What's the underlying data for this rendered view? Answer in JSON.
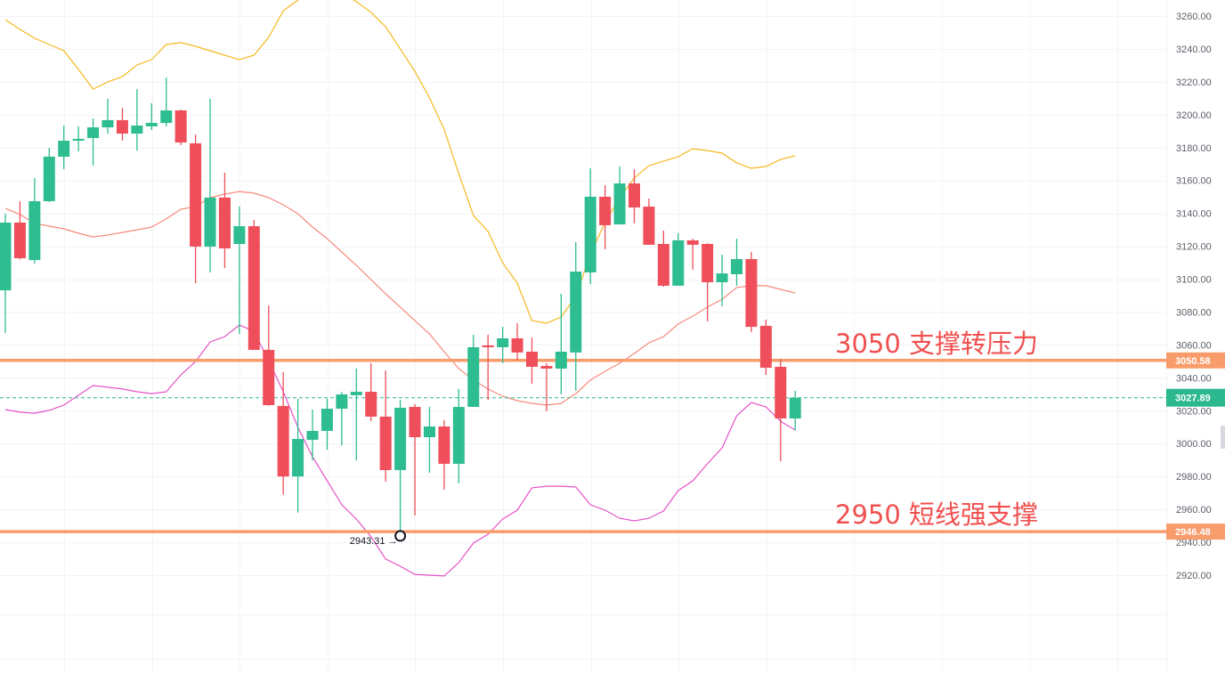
{
  "chart_data": {
    "type": "candlestick",
    "title": "",
    "xlabel": "",
    "ylabel": "",
    "ylim": [
      2900,
      3270
    ],
    "y_ticks": [
      "3260.00",
      "3240.00",
      "3220.00",
      "3200.00",
      "3180.00",
      "3160.00",
      "3140.00",
      "3120.00",
      "3100.00",
      "3080.00",
      "3060.00",
      "3040.00",
      "3020.00",
      "3000.00",
      "2980.00",
      "2960.00",
      "2940.00",
      "2920.00"
    ],
    "grid": true,
    "colors": {
      "up": "#2ebd91",
      "down": "#ef4f5a",
      "upper_band": "#f6b81e",
      "middle_band": "#f78a7e",
      "lower_band": "#e552c8",
      "level_line": "#f89c6c",
      "annotation_text": "#f0504f",
      "last_price": "#2bb88f"
    },
    "candles": [
      [
        3093.2,
        3139.8,
        3067.3,
        3134.4
      ],
      [
        3134.4,
        3147.4,
        3112.0,
        3112.7
      ],
      [
        3111.6,
        3161.5,
        3109.5,
        3147.4
      ],
      [
        3147.4,
        3179.9,
        3146.9,
        3174.5
      ],
      [
        3174.5,
        3193.4,
        3166.9,
        3184.2
      ],
      [
        3184.2,
        3192.9,
        3177.7,
        3185.3
      ],
      [
        3185.8,
        3197.7,
        3169.0,
        3192.3
      ],
      [
        3192.3,
        3209.7,
        3188.5,
        3196.7
      ],
      [
        3196.7,
        3204.2,
        3184.2,
        3188.5
      ],
      [
        3188.5,
        3215.6,
        3178.2,
        3193.4
      ],
      [
        3192.9,
        3207.0,
        3190.7,
        3195.0
      ],
      [
        3195.0,
        3222.6,
        3192.9,
        3202.6
      ],
      [
        3202.6,
        3203.1,
        3181.5,
        3183.1
      ],
      [
        3182.6,
        3188.0,
        3097.6,
        3119.8
      ],
      [
        3119.8,
        3209.7,
        3104.1,
        3149.6
      ],
      [
        3149.6,
        3164.7,
        3106.8,
        3118.7
      ],
      [
        3121.4,
        3144.2,
        3066.7,
        3132.2
      ],
      [
        3132.2,
        3136.0,
        3057.0,
        3057.0
      ],
      [
        3057.0,
        3084.0,
        3023.0,
        3023.4
      ],
      [
        3022.9,
        3043.4,
        2969.0,
        2980.0
      ],
      [
        2980.0,
        3027.2,
        2958.0,
        3002.8
      ],
      [
        3002.3,
        3020.7,
        2989.8,
        3007.7
      ],
      [
        3007.7,
        3027.2,
        2996.3,
        3021.2
      ],
      [
        3021.2,
        3031.5,
        2999.0,
        3029.9
      ],
      [
        3029.4,
        3045.6,
        2989.8,
        3031.5
      ],
      [
        3031.5,
        3048.9,
        3013.6,
        3016.4
      ],
      [
        3016.4,
        3044.5,
        2976.8,
        2983.9
      ],
      [
        2983.9,
        3026.6,
        2943.3,
        3021.8
      ],
      [
        3022.3,
        3024.0,
        2956.3,
        3003.9
      ],
      [
        3003.9,
        3022.3,
        2982.3,
        3010.4
      ],
      [
        3010.4,
        3014.2,
        2972.0,
        2987.7
      ],
      [
        2987.7,
        3033.2,
        2975.8,
        3022.3
      ],
      [
        3022.3,
        3066.2,
        3022.3,
        3058.6
      ],
      [
        3059.7,
        3066.2,
        3026.6,
        3058.6
      ],
      [
        3058.6,
        3071.0,
        3048.9,
        3064.0
      ],
      [
        3064.0,
        3073.2,
        3050.5,
        3055.4
      ],
      [
        3055.9,
        3064.5,
        3036.4,
        3046.7
      ],
      [
        3047.2,
        3048.9,
        3019.6,
        3045.6
      ],
      [
        3045.6,
        3091.1,
        3029.9,
        3055.9
      ],
      [
        3055.4,
        3122.5,
        3032.1,
        3104.6
      ],
      [
        3104.1,
        3167.4,
        3097.0,
        3150.1
      ],
      [
        3150.1,
        3157.1,
        3118.2,
        3132.8
      ],
      [
        3133.3,
        3168.5,
        3133.3,
        3158.2
      ],
      [
        3158.2,
        3166.9,
        3133.9,
        3143.6
      ],
      [
        3144.1,
        3149.0,
        3120.9,
        3120.9
      ],
      [
        3121.4,
        3129.5,
        3095.4,
        3096.0
      ],
      [
        3096.0,
        3128.0,
        3096.0,
        3123.6
      ],
      [
        3123.6,
        3124.6,
        3105.7,
        3120.9
      ],
      [
        3121.4,
        3121.9,
        3074.3,
        3098.1
      ],
      [
        3098.1,
        3114.9,
        3083.5,
        3103.5
      ],
      [
        3103.0,
        3124.6,
        3096.0,
        3112.2
      ],
      [
        3112.2,
        3116.5,
        3067.8,
        3071.0
      ],
      [
        3071.6,
        3075.4,
        3041.8,
        3046.1
      ],
      [
        3046.7,
        3051.6,
        2989.3,
        3015.3
      ],
      [
        3015.3,
        3032.1,
        3008.2,
        3027.9
      ]
    ],
    "candle_format": [
      "open",
      "high",
      "low",
      "close"
    ],
    "bollinger": {
      "upper": [
        3257.8,
        3251.9,
        3246.5,
        3242.7,
        3238.9,
        3227.5,
        3215.6,
        3219.9,
        3223.2,
        3230.2,
        3233.5,
        3242.7,
        3243.8,
        3241.6,
        3238.9,
        3236.2,
        3233.5,
        3236.2,
        3247.0,
        3263.2,
        3269.7,
        3275.0,
        3276.0,
        3274.0,
        3268.7,
        3262.2,
        3253.5,
        3240.0,
        3226.4,
        3210.2,
        3191.2,
        3164.2,
        3138.7,
        3129.0,
        3110.0,
        3097.6,
        3074.8,
        3073.2,
        3077.0,
        3089.5,
        3115.4,
        3134.4,
        3149.6,
        3161.5,
        3169.0,
        3171.8,
        3174.5,
        3179.3,
        3178.2,
        3176.6,
        3170.7,
        3167.4,
        3168.5,
        3172.8,
        3175.0
      ],
      "middle": [
        3143.1,
        3139.3,
        3133.9,
        3132.2,
        3130.6,
        3127.9,
        3125.7,
        3126.8,
        3128.4,
        3130.0,
        3131.7,
        3136.6,
        3142.5,
        3144.1,
        3149.6,
        3151.7,
        3153.3,
        3152.3,
        3149.6,
        3145.2,
        3139.8,
        3131.7,
        3124.6,
        3116.5,
        3108.4,
        3099.7,
        3091.1,
        3083.0,
        3074.8,
        3066.7,
        3055.9,
        3045.6,
        3038.6,
        3033.2,
        3028.8,
        3026.1,
        3024.5,
        3023.4,
        3024.5,
        3030.4,
        3038.6,
        3044.0,
        3048.9,
        3054.8,
        3061.3,
        3065.1,
        3072.7,
        3077.5,
        3083.0,
        3087.8,
        3094.9,
        3096.0,
        3096.0,
        3093.8,
        3091.6
      ],
      "lower": [
        3020.7,
        3019.1,
        3018.5,
        3020.2,
        3023.4,
        3029.4,
        3035.3,
        3034.3,
        3033.2,
        3031.5,
        3030.4,
        3031.5,
        3041.8,
        3049.9,
        3061.8,
        3065.1,
        3072.1,
        3068.3,
        3050.5,
        3031.5,
        3009.9,
        2992.0,
        2977.4,
        2962.8,
        2954.1,
        2943.3,
        2929.8,
        2925.4,
        2920.5,
        2920.0,
        2919.5,
        2927.6,
        2939.5,
        2944.9,
        2954.1,
        2959.5,
        2973.1,
        2974.1,
        2974.1,
        2973.6,
        2962.8,
        2959.5,
        2954.6,
        2953.0,
        2954.6,
        2959.0,
        2971.4,
        2977.4,
        2987.7,
        2997.4,
        3016.9,
        3025.0,
        3022.3,
        3013.6,
        3008.2
      ]
    },
    "levels": [
      {
        "price": 3050.58,
        "tag": "3050.58",
        "annotation": "3050 支撑转压力"
      },
      {
        "price": 2946.48,
        "tag": "2946.48",
        "annotation": "2950 短线强支撑"
      }
    ],
    "last_price": {
      "price": 3027.89,
      "tag": "3027.89"
    },
    "low_marker": {
      "price": 2943.31,
      "candle_index": 27,
      "label": "2943.31 →"
    }
  }
}
